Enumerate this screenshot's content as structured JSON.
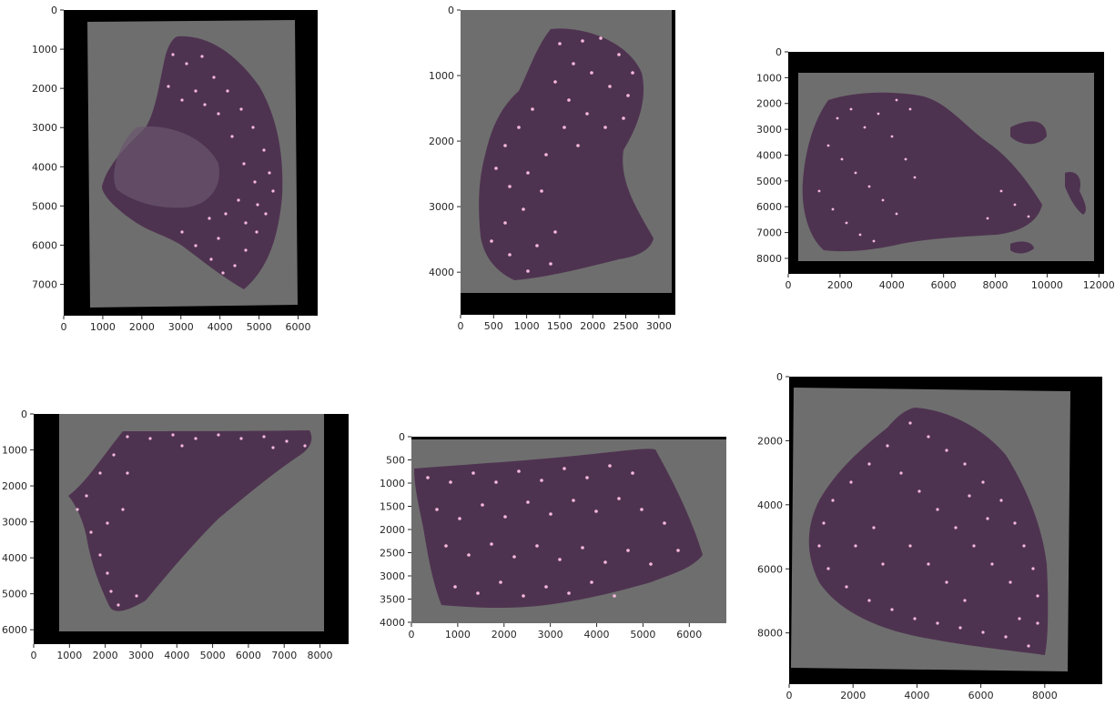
{
  "colors": {
    "background": "#ffffff",
    "frame": "#000000",
    "slide": "#6e6e6e",
    "tissue": "#4e3350",
    "tissue_dark": "#3e2840",
    "spot": "#f7b8dc",
    "axis_text": "#262626"
  },
  "panels": [
    {
      "id": "panel-1",
      "description": "Whole-slide tissue scan with overlaid highlighted spots",
      "x_ticks": [
        "0",
        "1000",
        "2000",
        "3000",
        "4000",
        "5000",
        "6000"
      ],
      "y_ticks": [
        "0",
        "1000",
        "2000",
        "3000",
        "4000",
        "5000",
        "6000",
        "7000"
      ],
      "x_range": [
        0,
        6500
      ],
      "y_range": [
        0,
        7800
      ]
    },
    {
      "id": "panel-2",
      "description": "Whole-slide tissue scan with overlaid highlighted spots",
      "x_ticks": [
        "0",
        "500",
        "1000",
        "1500",
        "2000",
        "2500",
        "3000"
      ],
      "y_ticks": [
        "0",
        "1000",
        "2000",
        "3000",
        "4000"
      ],
      "x_range": [
        0,
        3250
      ],
      "y_range": [
        0,
        4650
      ]
    },
    {
      "id": "panel-3",
      "description": "Whole-slide tissue scan with overlaid highlighted spots",
      "x_ticks": [
        "0",
        "2000",
        "4000",
        "6000",
        "8000",
        "10000",
        "12000"
      ],
      "y_ticks": [
        "0",
        "1000",
        "2000",
        "3000",
        "4000",
        "5000",
        "6000",
        "7000",
        "8000"
      ],
      "x_range": [
        0,
        12200
      ],
      "y_range": [
        0,
        8600
      ]
    },
    {
      "id": "panel-4",
      "description": "Whole-slide tissue scan with overlaid highlighted spots",
      "x_ticks": [
        "0",
        "1000",
        "2000",
        "3000",
        "4000",
        "5000",
        "6000",
        "7000",
        "8000"
      ],
      "y_ticks": [
        "0",
        "1000",
        "2000",
        "3000",
        "4000",
        "5000",
        "6000"
      ],
      "x_range": [
        0,
        8800
      ],
      "y_range": [
        0,
        6400
      ]
    },
    {
      "id": "panel-5",
      "description": "Whole-slide tissue scan with overlaid highlighted spots",
      "x_ticks": [
        "0",
        "1000",
        "2000",
        "3000",
        "4000",
        "5000",
        "6000"
      ],
      "y_ticks": [
        "0",
        "500",
        "1000",
        "1500",
        "2000",
        "2500",
        "3000",
        "3500",
        "4000"
      ],
      "x_range": [
        0,
        6800
      ],
      "y_range": [
        0,
        4020
      ]
    },
    {
      "id": "panel-6",
      "description": "Whole-slide tissue scan with overlaid highlighted spots",
      "x_ticks": [
        "0",
        "2000",
        "4000",
        "6000",
        "8000"
      ],
      "y_ticks": [
        "0",
        "2000",
        "4000",
        "6000",
        "8000"
      ],
      "x_range": [
        0,
        9800
      ],
      "y_range": [
        0,
        9600
      ]
    }
  ]
}
